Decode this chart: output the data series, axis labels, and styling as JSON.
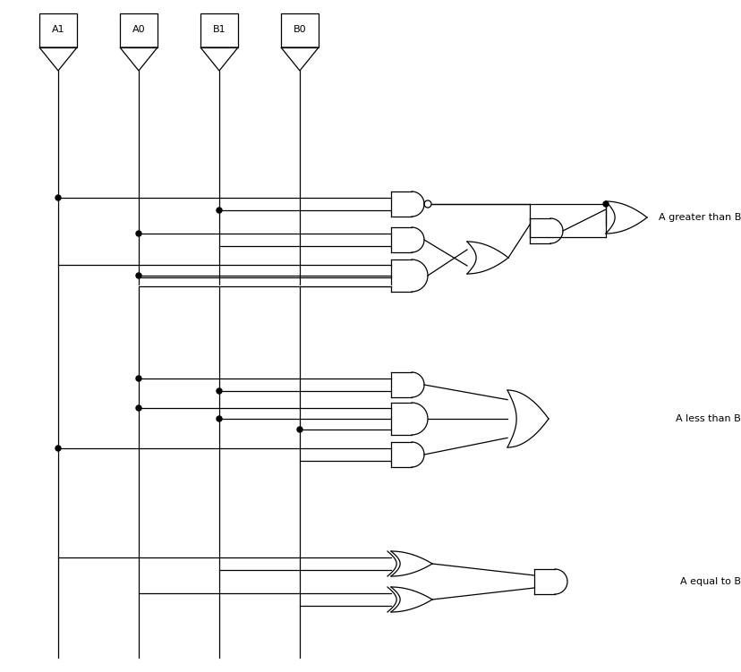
{
  "bg_color": "#ffffff",
  "line_color": "#000000",
  "lw": 0.9,
  "glw": 0.9,
  "figsize": [
    8.29,
    7.51
  ],
  "dpi": 100,
  "input_labels": [
    "A1",
    "A0",
    "B1",
    "B0"
  ],
  "output_labels": [
    "A greater than B",
    "A less than B",
    "A equal to B"
  ],
  "label_fontsize": 8.0
}
